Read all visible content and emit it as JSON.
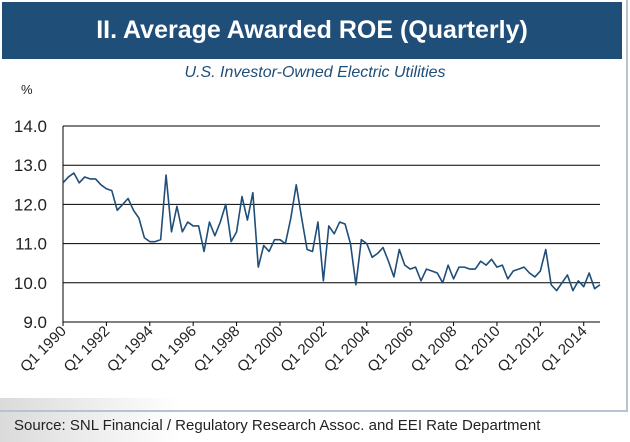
{
  "header": {
    "title": "II. Average Awarded ROE (Quarterly)",
    "subtitle": "U.S. Investor-Owned Electric Utilities"
  },
  "footer": {
    "source": "Source: SNL Financial / Regulatory Research Assoc. and EEI Rate Department"
  },
  "colors": {
    "title_bar": "#1f4e79",
    "line": "#1f4e79",
    "grid": "#000000"
  },
  "chart_data": {
    "type": "line",
    "unit_label": "%",
    "ylim": [
      9.0,
      14.0
    ],
    "yticks": [
      "9.0",
      "10.0",
      "11.0",
      "12.0",
      "13.0",
      "14.0"
    ],
    "xticks": [
      "Q1 1990",
      "Q1 1992",
      "Q1 1994",
      "Q1 1996",
      "Q1 1998",
      "Q1 2000",
      "Q1 2002",
      "Q1 2004",
      "Q1 2006",
      "Q1 2008",
      "Q1 2010",
      "Q1 2012",
      "Q1 2014"
    ],
    "grid": "horizontal",
    "series": [
      {
        "x": [
          "Q1 1990",
          "Q2 1990",
          "Q3 1990",
          "Q4 1990",
          "Q1 1991",
          "Q2 1991",
          "Q3 1991",
          "Q4 1991",
          "Q1 1992",
          "Q2 1992",
          "Q3 1992",
          "Q4 1992",
          "Q1 1993",
          "Q2 1993",
          "Q3 1993",
          "Q4 1993",
          "Q1 1994",
          "Q2 1994",
          "Q3 1994",
          "Q4 1994",
          "Q1 1995",
          "Q2 1995",
          "Q3 1995",
          "Q4 1995",
          "Q1 1996",
          "Q2 1996",
          "Q3 1996",
          "Q4 1996",
          "Q1 1997",
          "Q2 1997",
          "Q3 1997",
          "Q4 1997",
          "Q1 1998",
          "Q2 1998",
          "Q3 1998",
          "Q4 1998",
          "Q1 1999",
          "Q2 1999",
          "Q3 1999",
          "Q4 1999",
          "Q1 2000",
          "Q2 2000",
          "Q3 2000",
          "Q4 2000",
          "Q1 2001",
          "Q2 2001",
          "Q3 2001",
          "Q4 2001",
          "Q1 2002",
          "Q2 2002",
          "Q3 2002",
          "Q4 2002",
          "Q1 2003",
          "Q2 2003",
          "Q3 2003",
          "Q4 2003",
          "Q1 2004",
          "Q2 2004",
          "Q3 2004",
          "Q4 2004",
          "Q1 2005",
          "Q2 2005",
          "Q3 2005",
          "Q4 2005",
          "Q1 2006",
          "Q2 2006",
          "Q3 2006",
          "Q4 2006",
          "Q1 2007",
          "Q2 2007",
          "Q3 2007",
          "Q4 2007",
          "Q1 2008",
          "Q2 2008",
          "Q3 2008",
          "Q4 2008",
          "Q1 2009",
          "Q2 2009",
          "Q3 2009",
          "Q4 2009",
          "Q1 2010",
          "Q2 2010",
          "Q3 2010",
          "Q4 2010",
          "Q1 2011",
          "Q2 2011",
          "Q3 2011",
          "Q4 2011",
          "Q1 2012",
          "Q2 2012",
          "Q3 2012",
          "Q4 2012",
          "Q1 2013",
          "Q2 2013",
          "Q3 2013",
          "Q4 2013",
          "Q1 2014",
          "Q2 2014",
          "Q3 2014",
          "Q4 2014"
        ],
        "values": [
          12.55,
          12.7,
          12.8,
          12.55,
          12.7,
          12.65,
          12.65,
          12.5,
          12.4,
          12.35,
          11.85,
          12.0,
          12.15,
          11.85,
          11.65,
          11.15,
          11.05,
          11.05,
          11.1,
          12.75,
          11.3,
          11.95,
          11.3,
          11.55,
          11.45,
          11.45,
          10.8,
          11.55,
          11.2,
          11.55,
          12.0,
          11.05,
          11.3,
          12.2,
          11.6,
          12.3,
          10.4,
          10.95,
          10.8,
          11.1,
          11.1,
          11.0,
          11.65,
          12.5,
          11.65,
          10.85,
          10.8,
          11.55,
          10.05,
          11.45,
          11.25,
          11.55,
          11.5,
          11.0,
          9.95,
          11.1,
          11.0,
          10.65,
          10.75,
          10.9,
          10.55,
          10.15,
          10.85,
          10.45,
          10.35,
          10.4,
          10.05,
          10.35,
          10.3,
          10.25,
          10.0,
          10.45,
          10.1,
          10.4,
          10.4,
          10.35,
          10.35,
          10.55,
          10.45,
          10.6,
          10.4,
          10.45,
          10.1,
          10.3,
          10.35,
          10.4,
          10.25,
          10.15,
          10.3,
          10.85,
          9.95,
          9.8,
          10.0,
          10.2,
          9.8,
          10.05,
          9.9,
          10.25,
          9.85,
          9.95
        ]
      }
    ]
  }
}
